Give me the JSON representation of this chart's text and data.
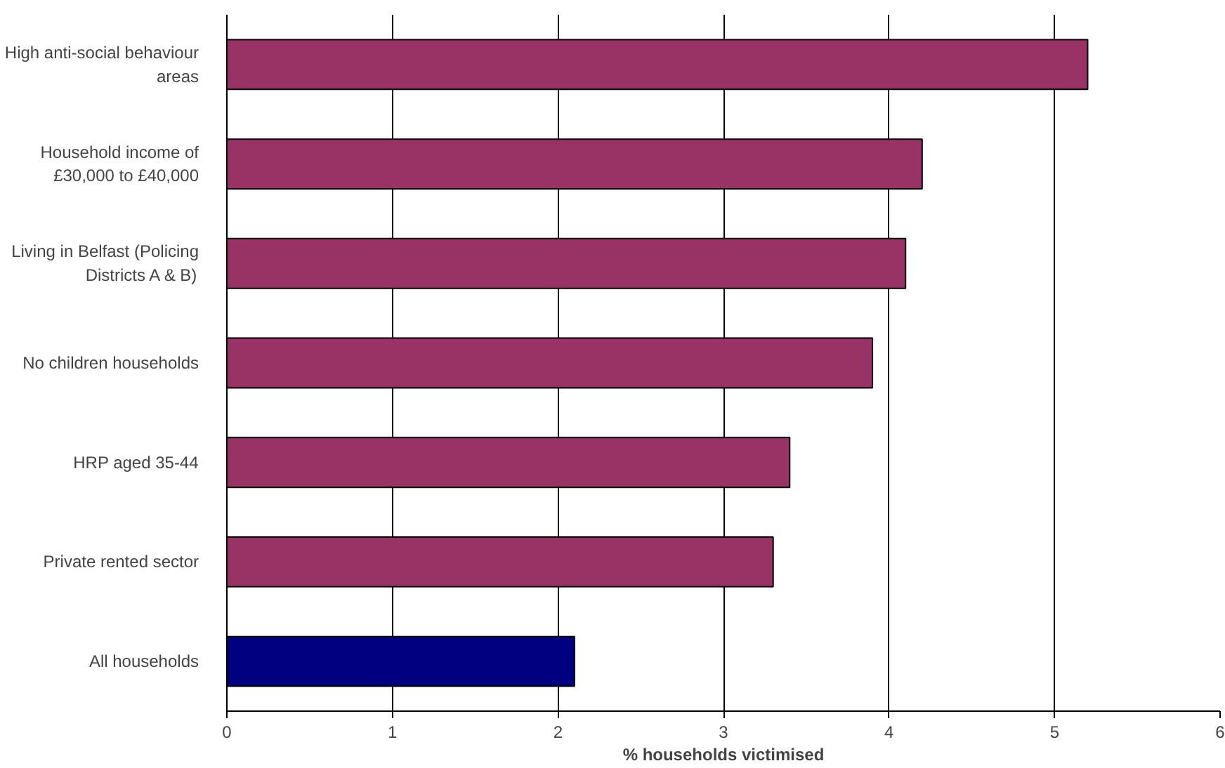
{
  "chart_data": {
    "type": "bar",
    "orientation": "horizontal",
    "xlabel": "% households victimised",
    "categories": [
      "High anti-social behaviour areas",
      "Household income of £30,000 to £40,000",
      "Living in Belfast (Policing Districts A & B)",
      "No children households",
      "HRP aged 35-44",
      "Private rented sector",
      "All households"
    ],
    "values": [
      5.2,
      4.2,
      4.1,
      3.9,
      3.4,
      3.3,
      2.1
    ],
    "colors": [
      "#993366",
      "#993366",
      "#993366",
      "#993366",
      "#993366",
      "#993366",
      "#000080"
    ],
    "xlim": [
      0,
      6
    ],
    "xticks": [
      0,
      1,
      2,
      3,
      4,
      5,
      6
    ],
    "grid": "x"
  }
}
